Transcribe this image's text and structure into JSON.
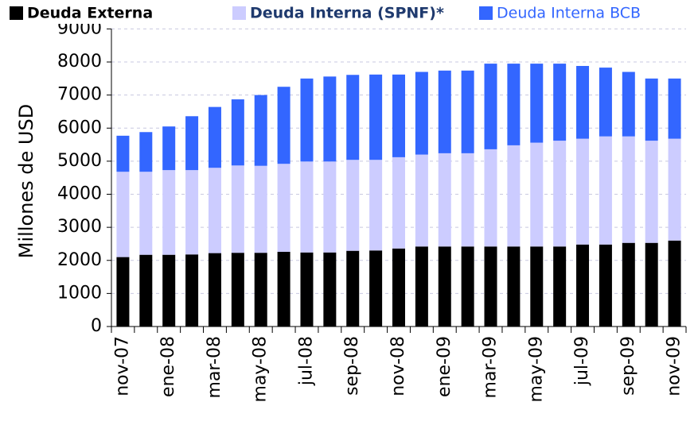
{
  "chart_data": {
    "type": "bar",
    "stacked": true,
    "y_label": "Millones de USD",
    "categories": [
      "nov-07",
      null,
      "ene-08",
      null,
      "mar-08",
      null,
      "may-08",
      null,
      "jul-08",
      null,
      "sep-08",
      null,
      "nov-08",
      null,
      "ene-09",
      null,
      "mar-09",
      null,
      "may-09",
      null,
      "jul-09",
      null,
      "sep-09",
      null,
      "nov-09"
    ],
    "series": [
      {
        "name": "Deuda Externa",
        "color": "#000000",
        "values": [
          2100,
          2170,
          2170,
          2180,
          2220,
          2230,
          2230,
          2260,
          2240,
          2240,
          2290,
          2300,
          2360,
          2420,
          2420,
          2420,
          2420,
          2420,
          2420,
          2420,
          2480,
          2480,
          2530,
          2530,
          2600
        ]
      },
      {
        "name": "Deuda Interna (SPNF)*",
        "color": "#ccccff",
        "values": [
          2580,
          2510,
          2560,
          2550,
          2580,
          2640,
          2630,
          2660,
          2750,
          2750,
          2750,
          2740,
          2760,
          2780,
          2820,
          2820,
          2940,
          3060,
          3140,
          3200,
          3200,
          3270,
          3220,
          3090,
          3080
        ]
      },
      {
        "name": "Deuda Interna BCB",
        "color": "#3366ff",
        "values": [
          1090,
          1200,
          1320,
          1630,
          1840,
          2000,
          2140,
          2330,
          2510,
          2570,
          2570,
          2580,
          2500,
          2500,
          2500,
          2500,
          2590,
          2470,
          2390,
          2330,
          2200,
          2080,
          1950,
          1880,
          1820
        ]
      }
    ],
    "ylim": [
      0,
      9000
    ],
    "yticks": [
      0,
      1000,
      2000,
      3000,
      4000,
      5000,
      6000,
      7000,
      8000,
      9000
    ],
    "grid": true,
    "legend": "top"
  }
}
